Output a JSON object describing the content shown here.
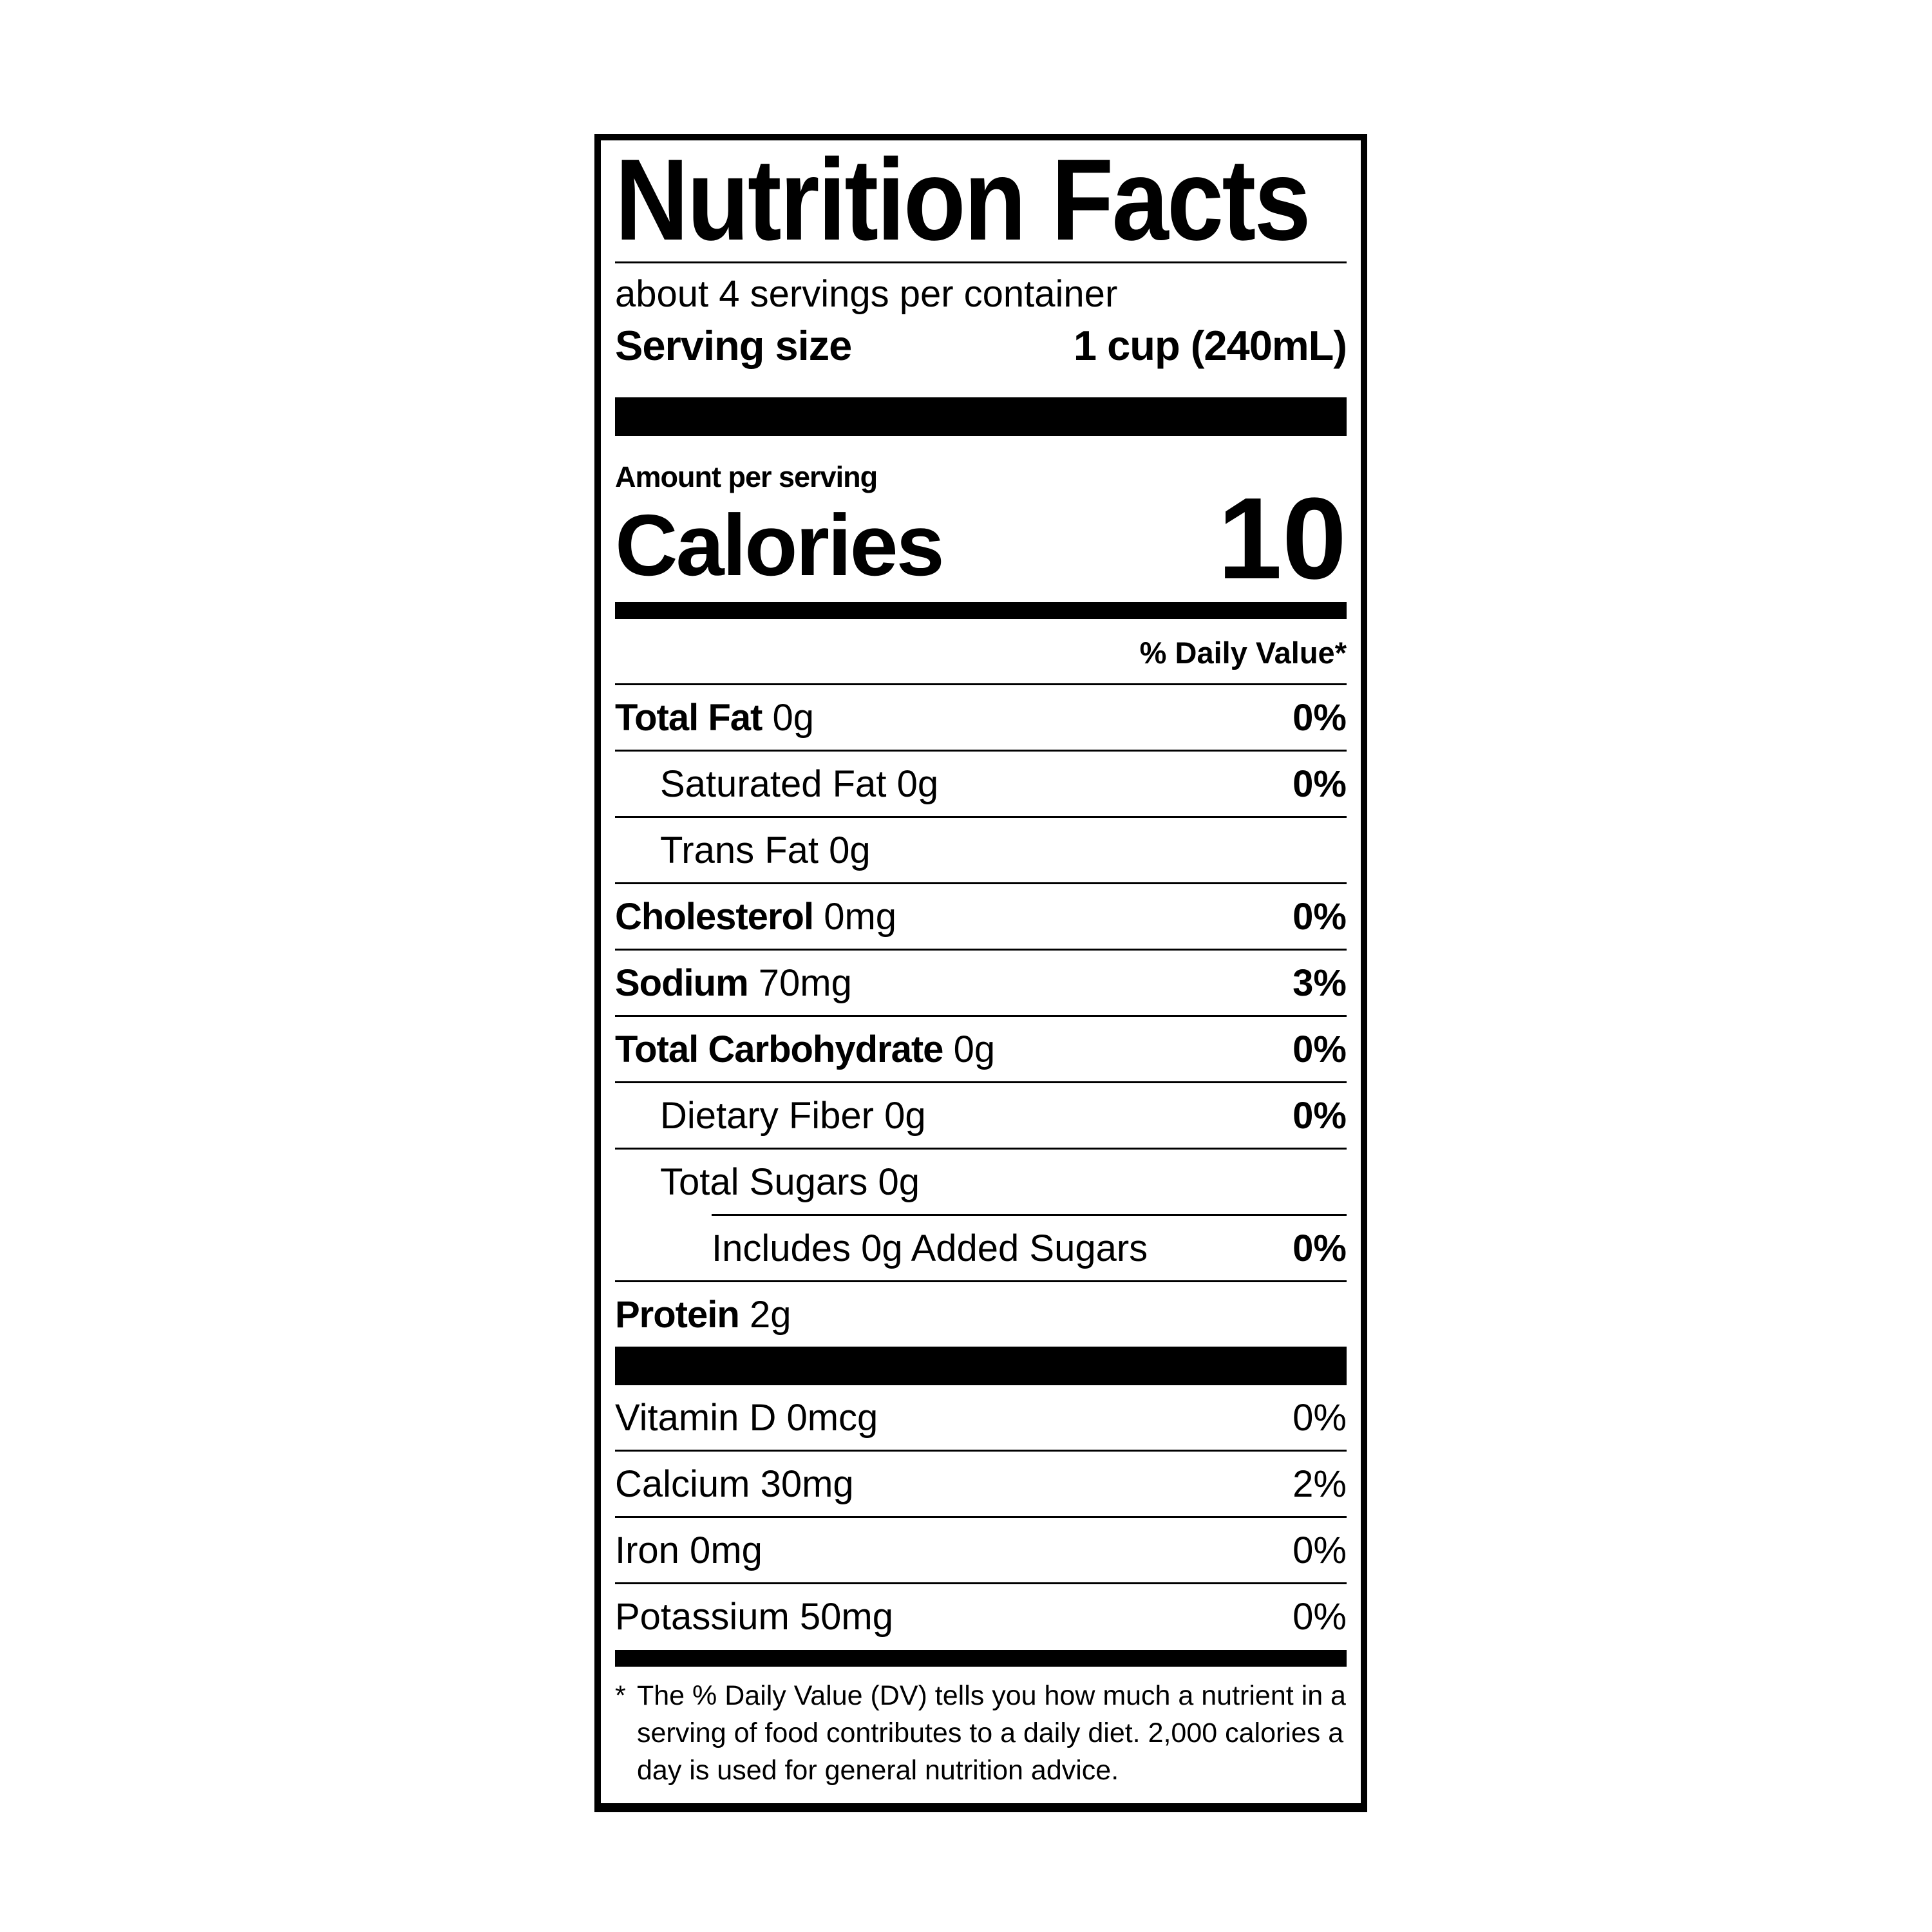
{
  "label": {
    "title": "Nutrition Facts",
    "servings_per_container": "about 4 servings per container",
    "serving_size_label": "Serving size",
    "serving_size_value": "1 cup (240mL)",
    "amount_per_serving": "Amount per serving",
    "calories_label": "Calories",
    "calories_value": "10",
    "daily_value_header": "% Daily Value*",
    "nutrients": [
      {
        "name": "Total Fat",
        "amount": "0g",
        "dv": "0%",
        "bold": true,
        "indent": 0,
        "inset_rule": false
      },
      {
        "name": "Saturated Fat",
        "amount": "0g",
        "dv": "0%",
        "bold": false,
        "indent": 1,
        "inset_rule": false
      },
      {
        "name": "Trans Fat",
        "amount": "0g",
        "dv": "",
        "bold": false,
        "indent": 1,
        "inset_rule": false
      },
      {
        "name": "Cholesterol",
        "amount": "0mg",
        "dv": "0%",
        "bold": true,
        "indent": 0,
        "inset_rule": false
      },
      {
        "name": "Sodium",
        "amount": "70mg",
        "dv": "3%",
        "bold": true,
        "indent": 0,
        "inset_rule": false
      },
      {
        "name": "Total Carbohydrate",
        "amount": "0g",
        "dv": "0%",
        "bold": true,
        "indent": 0,
        "inset_rule": false
      },
      {
        "name": "Dietary Fiber",
        "amount": "0g",
        "dv": "0%",
        "bold": false,
        "indent": 1,
        "inset_rule": false
      },
      {
        "name": "Total Sugars",
        "amount": "0g",
        "dv": "",
        "bold": false,
        "indent": 1,
        "inset_rule": false
      },
      {
        "name": "Includes 0g Added Sugars",
        "amount": "",
        "dv": "0%",
        "bold": false,
        "indent": 2,
        "inset_rule": true
      },
      {
        "name": "Protein",
        "amount": "2g",
        "dv": "",
        "bold": true,
        "indent": 0,
        "inset_rule": false
      }
    ],
    "vitamins": [
      {
        "name": "Vitamin D 0mcg",
        "dv": "0%"
      },
      {
        "name": "Calcium 30mg",
        "dv": "2%"
      },
      {
        "name": "Iron 0mg",
        "dv": "0%"
      },
      {
        "name": "Potassium 50mg",
        "dv": "0%"
      }
    ],
    "footnote_marker": "*",
    "footnote": "The % Daily Value (DV) tells you how much a nutrient in a serving of food contributes to a daily diet. 2,000 calories a day is used for general nutrition advice."
  }
}
